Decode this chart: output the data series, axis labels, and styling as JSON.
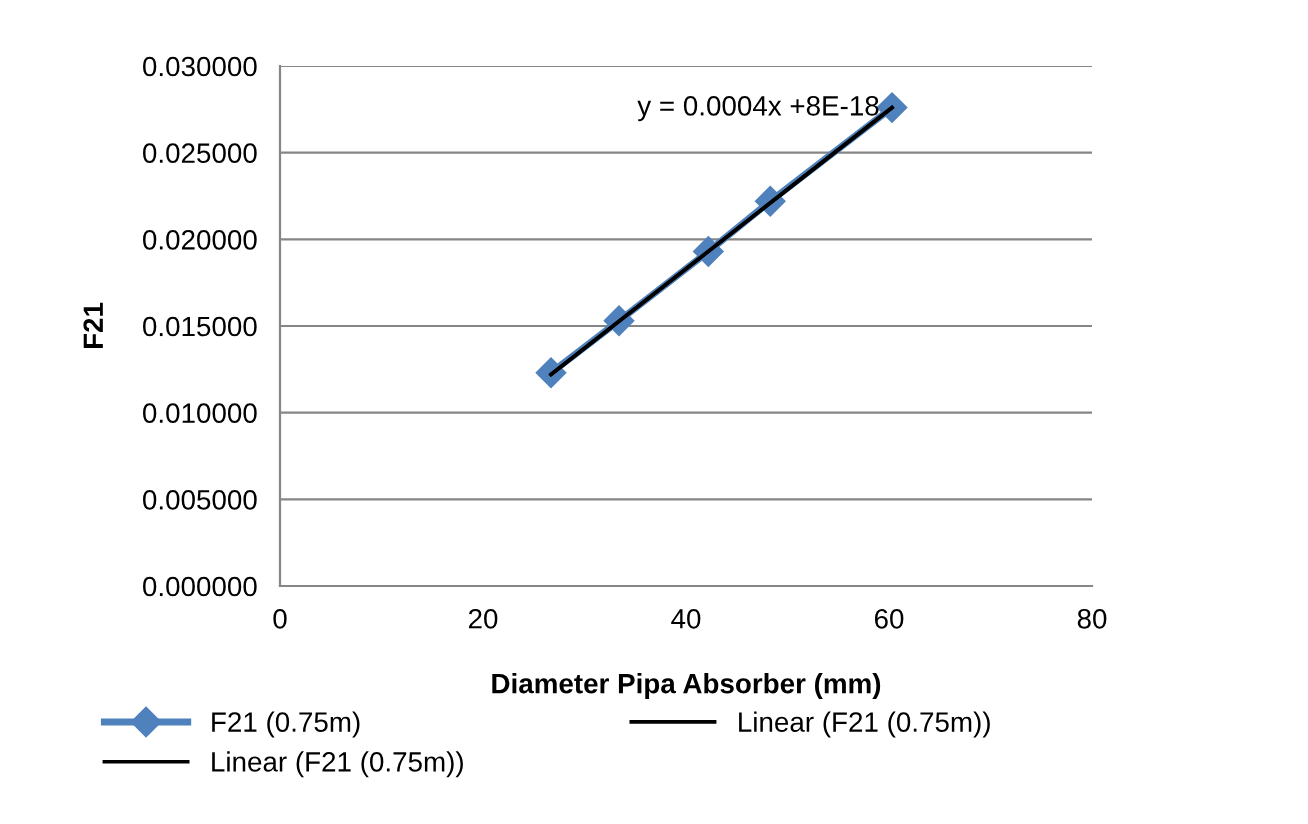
{
  "chart_data": {
    "type": "line",
    "xlabel": "Diameter Pipa Absorber (mm)",
    "ylabel": "F21",
    "xlim": [
      0,
      80
    ],
    "xticks": [
      0,
      20,
      40,
      60,
      80
    ],
    "ylim": [
      0,
      0.03
    ],
    "yticks": [
      {
        "value": 0,
        "label": "0.000000"
      },
      {
        "value": 0.005,
        "label": "0.005000"
      },
      {
        "value": 0.01,
        "label": "0.010000"
      },
      {
        "value": 0.015,
        "label": "0.015000"
      },
      {
        "value": 0.02,
        "label": "0.020000"
      },
      {
        "value": 0.025,
        "label": "0.025000"
      },
      {
        "value": 0.03,
        "label": "0.030000"
      }
    ],
    "grid": "y",
    "legend": "bottom",
    "annotations": [
      "y = 0.0004x +8E-18"
    ],
    "series": [
      {
        "name": "F21 (0.75m)",
        "color": "#4f81bd",
        "marker": "diamond",
        "x": [
          26.7,
          33.4,
          42.2,
          48.3,
          60.3
        ],
        "values": [
          0.0123,
          0.0153,
          0.0193,
          0.0222,
          0.0276
        ]
      },
      {
        "name": "Linear (F21 (0.75m))",
        "color": "#000000",
        "marker": "none",
        "x": [
          26.7,
          60.3
        ],
        "values": [
          0.0122,
          0.0276
        ]
      },
      {
        "name": "Linear (F21 (0.75m))",
        "color": "#000000",
        "marker": "none",
        "x": [
          26.7,
          60.3
        ],
        "values": [
          0.0122,
          0.0276
        ]
      }
    ]
  }
}
